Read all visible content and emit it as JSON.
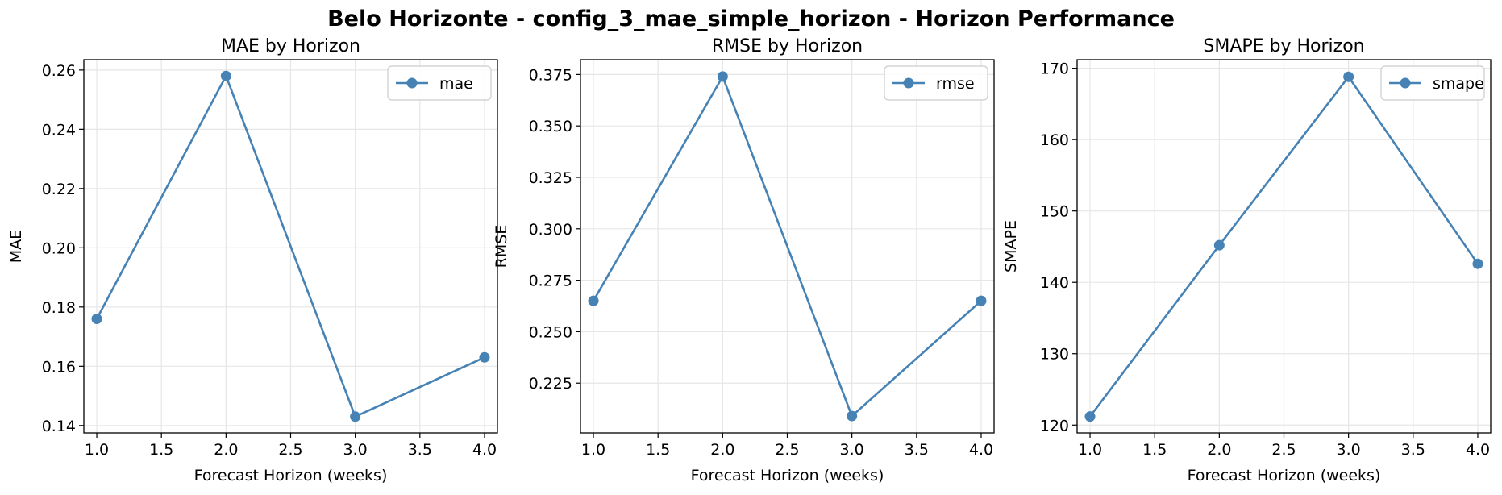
{
  "figure": {
    "suptitle": "Belo Horizonte - config_3_mae_simple_horizon - Horizon Performance",
    "line_color": "#4682b4",
    "grid_color": "#e6e6e6"
  },
  "chart_data": [
    {
      "type": "line",
      "title": "MAE by Horizon",
      "xlabel": "Forecast Horizon (weeks)",
      "ylabel": "MAE",
      "x": [
        1.0,
        2.0,
        3.0,
        4.0
      ],
      "series": [
        {
          "name": "mae",
          "values": [
            0.176,
            0.258,
            0.143,
            0.163
          ]
        }
      ],
      "xlim": [
        0.9,
        4.1
      ],
      "ylim": [
        0.1375,
        0.2635
      ],
      "xticks": [
        1.0,
        1.5,
        2.0,
        2.5,
        3.0,
        3.5,
        4.0
      ],
      "xtick_labels": [
        "1.0",
        "1.5",
        "2.0",
        "2.5",
        "3.0",
        "3.5",
        "4.0"
      ],
      "yticks": [
        0.14,
        0.16,
        0.18,
        0.2,
        0.22,
        0.24,
        0.26
      ],
      "ytick_labels": [
        "0.14",
        "0.16",
        "0.18",
        "0.20",
        "0.22",
        "0.24",
        "0.26"
      ],
      "grid": true,
      "legend": "top-right"
    },
    {
      "type": "line",
      "title": "RMSE by Horizon",
      "xlabel": "Forecast Horizon (weeks)",
      "ylabel": "RMSE",
      "x": [
        1.0,
        2.0,
        3.0,
        4.0
      ],
      "series": [
        {
          "name": "rmse",
          "values": [
            0.265,
            0.374,
            0.209,
            0.265
          ]
        }
      ],
      "xlim": [
        0.9,
        4.1
      ],
      "ylim": [
        0.2008,
        0.3822
      ],
      "xticks": [
        1.0,
        1.5,
        2.0,
        2.5,
        3.0,
        3.5,
        4.0
      ],
      "xtick_labels": [
        "1.0",
        "1.5",
        "2.0",
        "2.5",
        "3.0",
        "3.5",
        "4.0"
      ],
      "yticks": [
        0.225,
        0.25,
        0.275,
        0.3,
        0.325,
        0.35,
        0.375
      ],
      "ytick_labels": [
        "0.225",
        "0.250",
        "0.275",
        "0.300",
        "0.325",
        "0.350",
        "0.375"
      ],
      "grid": true,
      "legend": "top-right"
    },
    {
      "type": "line",
      "title": "SMAPE by Horizon",
      "xlabel": "Forecast Horizon (weeks)",
      "ylabel": "SMAPE",
      "x": [
        1.0,
        2.0,
        3.0,
        4.0
      ],
      "series": [
        {
          "name": "smape",
          "values": [
            121.2,
            145.2,
            168.8,
            142.6
          ]
        }
      ],
      "xlim": [
        0.9,
        4.1
      ],
      "ylim": [
        118.9,
        171.2
      ],
      "xticks": [
        1.0,
        1.5,
        2.0,
        2.5,
        3.0,
        3.5,
        4.0
      ],
      "xtick_labels": [
        "1.0",
        "1.5",
        "2.0",
        "2.5",
        "3.0",
        "3.5",
        "4.0"
      ],
      "yticks": [
        120,
        130,
        140,
        150,
        160,
        170
      ],
      "ytick_labels": [
        "120",
        "130",
        "140",
        "150",
        "160",
        "170"
      ],
      "grid": true,
      "legend": "top-right"
    }
  ]
}
